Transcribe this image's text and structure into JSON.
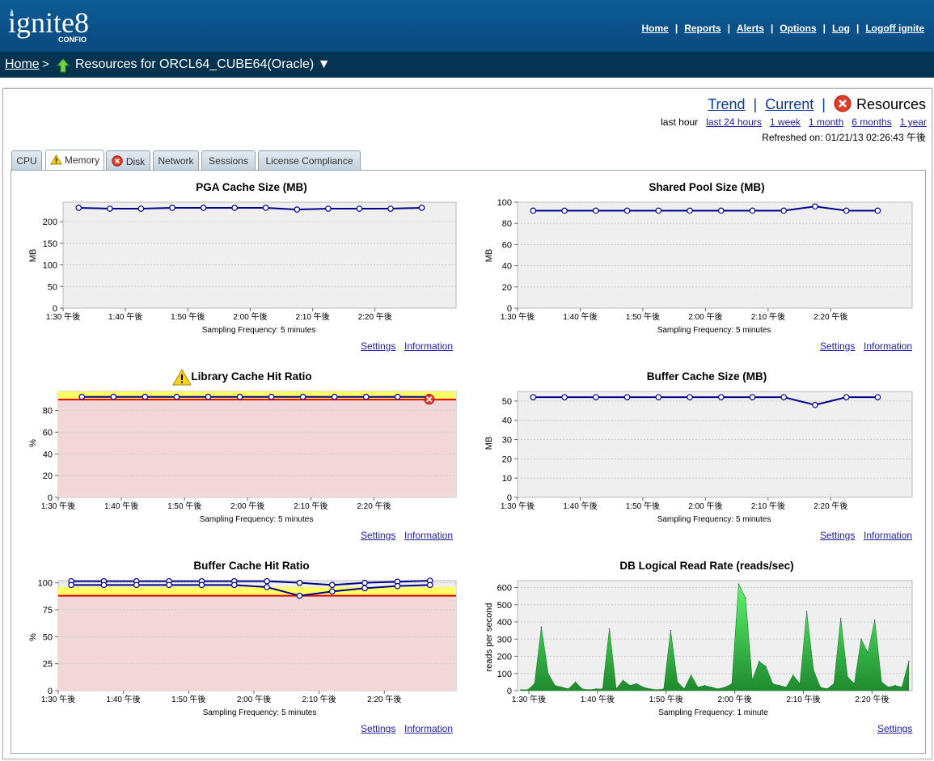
{
  "header": {
    "logo": {
      "main": "ignite8",
      "sub": "CONFIO"
    },
    "nav": [
      "Home",
      "Reports",
      "Alerts",
      "Options",
      "Log",
      "Logoff ignite"
    ]
  },
  "breadcrumb": {
    "home": "Home",
    "separator": ">",
    "title": "Resources for ORCL64_CUBE64(Oracle) ▼"
  },
  "modes": {
    "trend": "Trend",
    "current": "Current",
    "resources": "Resources"
  },
  "ranges": {
    "selected": "last hour",
    "links": [
      "last 24 hours",
      "1 week",
      "1 month",
      "6 months",
      "1 year"
    ]
  },
  "refreshed": "Refreshed on: 01/21/13 02:26:43 午後",
  "tabs": [
    "CPU",
    "Memory",
    "Disk",
    "Network",
    "Sessions",
    "License Compliance"
  ],
  "active_tab": "Memory",
  "links": {
    "settings": "Settings",
    "information": "Information"
  },
  "colors": {
    "header": "#0a4a80",
    "breadcrumb": "#063350",
    "line": "#00008b",
    "area": "#2e9e3c",
    "critical_zone": "#f2d7d9",
    "warning_band": "#ffff66",
    "threshold": "#e00000"
  },
  "chart_data": [
    {
      "type": "line",
      "title": "PGA Cache Size (MB)",
      "ylabel": "MB",
      "ylim": [
        0,
        245
      ],
      "yticks": [
        0,
        50,
        100,
        150,
        200
      ],
      "xlim": [
        0,
        12.6
      ],
      "x_tick_positions": [
        0,
        2,
        4,
        6,
        8,
        10
      ],
      "x_tick_labels": [
        "1:30 午後",
        "1:40 午後",
        "1:50 午後",
        "2:00 午後",
        "2:10 午後",
        "2:20 午後"
      ],
      "xlabel": "Sampling Frequency: 5 minutes",
      "series": [
        {
          "values": [
            [
              0.5,
              232
            ],
            [
              1.5,
              230
            ],
            [
              2.5,
              230
            ],
            [
              3.5,
              232
            ],
            [
              4.5,
              232
            ],
            [
              5.5,
              232
            ],
            [
              6.5,
              232
            ],
            [
              7.5,
              228
            ],
            [
              8.5,
              230
            ],
            [
              9.5,
              230
            ],
            [
              10.5,
              230
            ],
            [
              11.5,
              232
            ]
          ]
        }
      ],
      "links": [
        "settings",
        "information"
      ]
    },
    {
      "type": "line",
      "title": "Shared Pool Size (MB)",
      "ylabel": "MB",
      "ylim": [
        0,
        100
      ],
      "yticks": [
        0,
        20,
        40,
        60,
        80,
        100
      ],
      "xlim": [
        0,
        12.6
      ],
      "x_tick_positions": [
        0,
        2,
        4,
        6,
        8,
        10
      ],
      "x_tick_labels": [
        "1:30 午後",
        "1:40 午後",
        "1:50 午後",
        "2:00 午後",
        "2:10 午後",
        "2:20 午後"
      ],
      "xlabel": "Sampling Frequency: 5 minutes",
      "series": [
        {
          "values": [
            [
              0.5,
              92
            ],
            [
              1.5,
              92
            ],
            [
              2.5,
              92
            ],
            [
              3.5,
              92
            ],
            [
              4.5,
              92
            ],
            [
              5.5,
              92
            ],
            [
              6.5,
              92
            ],
            [
              7.5,
              92
            ],
            [
              8.5,
              92
            ],
            [
              9.5,
              96
            ],
            [
              10.5,
              92
            ],
            [
              11.5,
              92
            ]
          ]
        }
      ],
      "links": [
        "settings",
        "information"
      ]
    },
    {
      "type": "line",
      "title": "Library Cache Hit Ratio",
      "title_icon": "warning-icon",
      "ylabel": "%",
      "ylim": [
        0,
        97.5
      ],
      "yticks": [
        0,
        20,
        40,
        60,
        80
      ],
      "xlim": [
        0,
        12.6
      ],
      "x_tick_positions": [
        0,
        2,
        4,
        6,
        8,
        10
      ],
      "x_tick_labels": [
        "1:30 午後",
        "1:40 午後",
        "1:50 午後",
        "2:00 午後",
        "2:10 午後",
        "2:20 午後"
      ],
      "xlabel": "Sampling Frequency: 5 minutes",
      "bands": {
        "critical_below": 90,
        "warning": [
          90,
          97.5
        ]
      },
      "series": [
        {
          "values": [
            [
              0.75,
              92.5
            ],
            [
              1.75,
              92.5
            ],
            [
              2.75,
              92.5
            ],
            [
              3.75,
              92.5
            ],
            [
              4.75,
              92.5
            ],
            [
              5.75,
              92.5
            ],
            [
              6.75,
              92.5
            ],
            [
              7.75,
              92.5
            ],
            [
              8.75,
              92.5
            ],
            [
              9.75,
              92.5
            ],
            [
              10.75,
              92.5
            ],
            [
              11.75,
              92.5
            ]
          ]
        }
      ],
      "end_marker_icon": "critical-icon",
      "links": [
        "settings",
        "information"
      ]
    },
    {
      "type": "line",
      "title": "Buffer Cache Size (MB)",
      "ylabel": "MB",
      "ylim": [
        0,
        55
      ],
      "yticks": [
        0,
        10,
        20,
        30,
        40,
        50
      ],
      "xlim": [
        0,
        12.6
      ],
      "x_tick_positions": [
        0,
        2,
        4,
        6,
        8,
        10
      ],
      "x_tick_labels": [
        "1:30 午後",
        "1:40 午後",
        "1:50 午後",
        "2:00 午後",
        "2:10 午後",
        "2:20 午後"
      ],
      "xlabel": "Sampling Frequency: 5 minutes",
      "series": [
        {
          "values": [
            [
              0.5,
              52
            ],
            [
              1.5,
              52
            ],
            [
              2.5,
              52
            ],
            [
              3.5,
              52
            ],
            [
              4.5,
              52
            ],
            [
              5.5,
              52
            ],
            [
              6.5,
              52
            ],
            [
              7.5,
              52
            ],
            [
              8.5,
              52
            ],
            [
              9.5,
              48
            ],
            [
              10.5,
              52
            ],
            [
              11.5,
              52
            ]
          ]
        }
      ],
      "links": [
        "settings",
        "information"
      ]
    },
    {
      "type": "line",
      "title": "Buffer Cache Hit Ratio",
      "ylabel": "%",
      "ylim": [
        0,
        102
      ],
      "yticks": [
        0,
        25,
        50,
        75,
        100
      ],
      "xlim": [
        0,
        12.2
      ],
      "x_tick_positions": [
        0,
        2,
        4,
        6,
        8,
        10
      ],
      "x_tick_labels": [
        "1:30 午後",
        "1:40 午後",
        "1:50 午後",
        "2:00 午後",
        "2:10 午後",
        "2:20 午後"
      ],
      "xlabel": "Sampling Frequency: 5 minutes",
      "bands": {
        "critical_below": 88,
        "warning": [
          88,
          96
        ]
      },
      "series": [
        {
          "values": [
            [
              0.4,
              101.5
            ],
            [
              1.4,
              101.5
            ],
            [
              2.4,
              101.5
            ],
            [
              3.4,
              101.5
            ],
            [
              4.4,
              101.5
            ],
            [
              5.4,
              101.5
            ],
            [
              6.4,
              101.5
            ],
            [
              7.4,
              100
            ],
            [
              8.4,
              98
            ],
            [
              9.4,
              100
            ],
            [
              10.4,
              101
            ],
            [
              11.4,
              102
            ]
          ]
        },
        {
          "values": [
            [
              0.4,
              98
            ],
            [
              1.4,
              98
            ],
            [
              2.4,
              98
            ],
            [
              3.4,
              98
            ],
            [
              4.4,
              98
            ],
            [
              5.4,
              98
            ],
            [
              6.4,
              96
            ],
            [
              7.4,
              88
            ],
            [
              8.4,
              92
            ],
            [
              9.4,
              95
            ],
            [
              10.4,
              97
            ],
            [
              11.4,
              98
            ]
          ]
        }
      ],
      "links": [
        "settings",
        "information"
      ]
    },
    {
      "type": "area",
      "title": "DB Logical Read Rate (reads/sec)",
      "ylabel": "reads per second",
      "ylim": [
        0,
        640
      ],
      "yticks": [
        0,
        100,
        200,
        300,
        400,
        500,
        600
      ],
      "xlim": [
        0,
        11.5
      ],
      "x_tick_positions": [
        0.33,
        2.33,
        4.33,
        6.33,
        8.33,
        10.33
      ],
      "x_tick_labels": [
        "1:30 午後",
        "1:40 午後",
        "1:50 午後",
        "2:00 午後",
        "2:10 午後",
        "2:20 午後"
      ],
      "xlabel": "Sampling Frequency: 1 minute",
      "values": [
        5,
        5,
        40,
        370,
        100,
        30,
        20,
        10,
        50,
        10,
        5,
        10,
        10,
        360,
        10,
        60,
        30,
        40,
        20,
        10,
        5,
        10,
        350,
        50,
        10,
        90,
        20,
        30,
        20,
        10,
        20,
        40,
        620,
        540,
        60,
        170,
        140,
        40,
        30,
        20,
        90,
        40,
        460,
        120,
        20,
        10,
        40,
        420,
        80,
        40,
        300,
        220,
        410,
        50,
        20,
        30,
        20,
        170
      ],
      "links": [
        "settings"
      ]
    }
  ]
}
